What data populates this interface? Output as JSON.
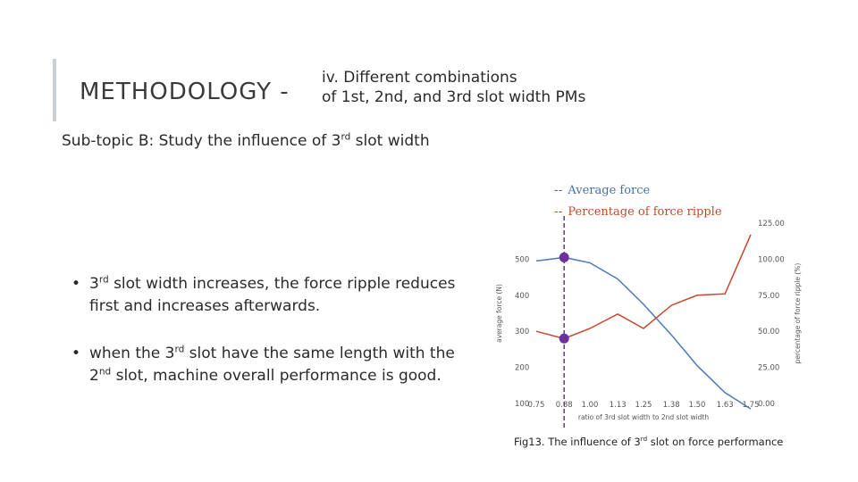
{
  "slide": {
    "title": "METHODOLOGY -",
    "subtitle_line1": "iv. Different combinations",
    "subtitle_line2": "of 1st, 2nd, and 3rd slot width PMs",
    "subtopic_pre": "Sub-topic B: Study the influence of 3",
    "subtopic_sup": "rd",
    "subtopic_post": " slot width",
    "bullets": [
      {
        "symbol": "•",
        "pre": "3",
        "sup": "rd",
        "post": " slot width increases, the force ripple reduces first and increases afterwards."
      },
      {
        "symbol": "•",
        "pre": "when the 3",
        "sup": "rd",
        "post": " slot have the same length with the 2",
        "sup2": "nd",
        "post2": " slot, machine  overall performance is good."
      }
    ],
    "caption_pre": "Fig13. The influence of 3",
    "caption_sup": "rd",
    "caption_post": " slot on force performance"
  },
  "legend": {
    "marker": "--",
    "average": "Average force",
    "ripple": "Percentage of force ripple"
  },
  "colors": {
    "average": "#4a7ab8",
    "ripple": "#c8452b",
    "marker": "#6b2fa0",
    "accent": "#c9cfd2"
  },
  "chart_data": {
    "type": "line",
    "x": [
      0.75,
      0.88,
      1.0,
      1.13,
      1.25,
      1.38,
      1.5,
      1.63,
      1.75
    ],
    "x_tick_labels": [
      "0.75",
      "0.88",
      "1.00",
      "1.13",
      "1.25",
      "1.38",
      "1.50",
      "1.63",
      "1.75"
    ],
    "xlabel": "ratio of 3rd slot width to 2nd slot width",
    "ylabel_left": "average force (N)",
    "ylabel_right": "percentage of force ripple (%)",
    "ylim_left": [
      100,
      600
    ],
    "ylim_right": [
      0,
      125
    ],
    "y_left_ticks": [
      "100",
      "200",
      "300",
      "400",
      "500"
    ],
    "y_right_ticks": [
      "0.00",
      "25.00",
      "50.00",
      "75.00",
      "100.00",
      "125.00"
    ],
    "series": [
      {
        "name": "Average force",
        "axis": "left",
        "values": [
          495,
          505,
          490,
          445,
          375,
          290,
          205,
          130,
          85
        ]
      },
      {
        "name": "Percentage of force ripple",
        "axis": "right",
        "values": [
          50,
          45,
          52,
          62,
          52,
          68,
          75,
          76,
          117
        ]
      }
    ],
    "highlight_x": 0.88,
    "grid": false
  }
}
